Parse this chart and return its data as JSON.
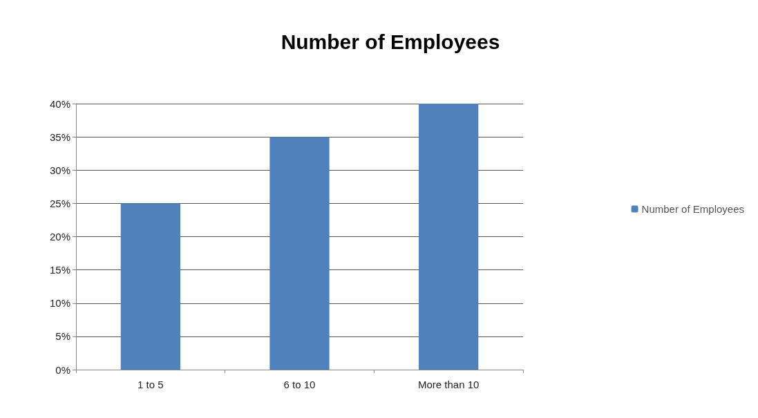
{
  "chart_data": {
    "type": "bar",
    "title": "Number of Employees",
    "categories": [
      "1 to 5",
      "6 to 10",
      "More than 10"
    ],
    "series": [
      {
        "name": "Number of Employees",
        "color": "#4f81bd",
        "values": [
          25,
          35,
          40
        ]
      }
    ],
    "ylim": [
      0,
      40
    ],
    "yticks": [
      {
        "value": 0,
        "label": "0%"
      },
      {
        "value": 5,
        "label": "5%"
      },
      {
        "value": 10,
        "label": "10%"
      },
      {
        "value": 15,
        "label": "15%"
      },
      {
        "value": 20,
        "label": "20%"
      },
      {
        "value": 25,
        "label": "25%"
      },
      {
        "value": 30,
        "label": "30%"
      },
      {
        "value": 35,
        "label": "35%"
      },
      {
        "value": 40,
        "label": "40%"
      }
    ],
    "grid": "y",
    "legend": "right"
  }
}
